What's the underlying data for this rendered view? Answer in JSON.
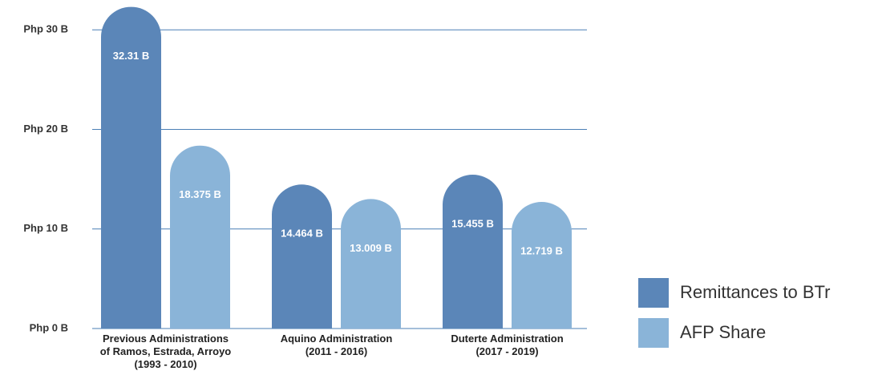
{
  "chart_data": {
    "type": "bar",
    "categories": [
      "Previous Administrations\nof Ramos, Estrada, Arroyo\n(1993 - 2010)",
      "Aquino Administration\n(2011 - 2016)",
      "Duterte Administration\n(2017 - 2019)"
    ],
    "series": [
      {
        "name": "Remittances to BTr",
        "color": "#5b86b8",
        "values": [
          32.31,
          14.464,
          15.455
        ],
        "value_labels": [
          "32.31 B",
          "14.464 B",
          "15.455 B"
        ]
      },
      {
        "name": "AFP Share",
        "color": "#8ab4d8",
        "values": [
          18.375,
          13.009,
          12.719
        ],
        "value_labels": [
          "18.375 B",
          "13.009 B",
          "12.719 B"
        ]
      }
    ],
    "ylim": [
      0,
      33
    ],
    "yticks": [
      {
        "value": 0,
        "label": "Php 0 B"
      },
      {
        "value": 10,
        "label": "Php 10 B"
      },
      {
        "value": 20,
        "label": "Php 20 B"
      },
      {
        "value": 30,
        "label": "Php 30 B"
      }
    ],
    "grid": true,
    "legend": "right"
  }
}
